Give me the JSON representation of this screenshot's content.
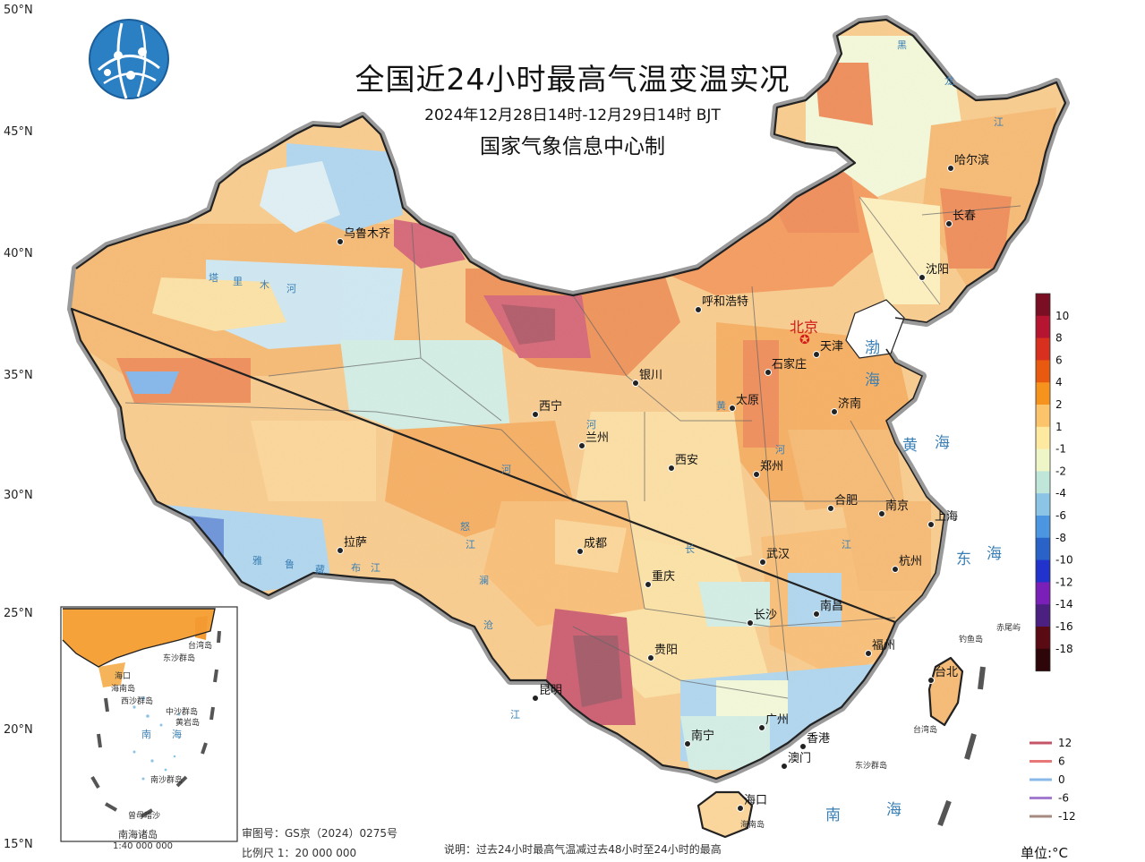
{
  "title": "全国近24小时最高气温变温实况",
  "time_range": "2024年12月28日14时-12月29日14时 BJT",
  "issuer": "国家气象信息中心制",
  "logo_icon": "globe-network-logo-icon",
  "latitude_labels": [
    "50°N",
    "45°N",
    "40°N",
    "35°N",
    "30°N",
    "25°N",
    "20°N",
    "15°N"
  ],
  "cities": [
    {
      "name": "乌鲁木齐"
    },
    {
      "name": "呼和浩特"
    },
    {
      "name": "银川"
    },
    {
      "name": "西宁"
    },
    {
      "name": "兰州"
    },
    {
      "name": "石家庄"
    },
    {
      "name": "太原"
    },
    {
      "name": "天津"
    },
    {
      "name": "济南"
    },
    {
      "name": "西安"
    },
    {
      "name": "郑州"
    },
    {
      "name": "合肥"
    },
    {
      "name": "南京"
    },
    {
      "name": "上海"
    },
    {
      "name": "成都"
    },
    {
      "name": "重庆"
    },
    {
      "name": "武汉"
    },
    {
      "name": "杭州"
    },
    {
      "name": "拉萨"
    },
    {
      "name": "长沙"
    },
    {
      "name": "南昌"
    },
    {
      "name": "贵阳"
    },
    {
      "name": "福州"
    },
    {
      "name": "台北"
    },
    {
      "name": "昆明"
    },
    {
      "name": "广州"
    },
    {
      "name": "南宁"
    },
    {
      "name": "香港"
    },
    {
      "name": "澳门"
    },
    {
      "name": "海口"
    },
    {
      "name": "哈尔滨"
    },
    {
      "name": "长春"
    },
    {
      "name": "沈阳"
    }
  ],
  "capital": "北京",
  "seas": [
    {
      "name": "渤"
    },
    {
      "name": "海"
    },
    {
      "name": "黄"
    },
    {
      "name": "海"
    },
    {
      "name": "东"
    },
    {
      "name": "海"
    },
    {
      "name": "南"
    },
    {
      "name": "海"
    }
  ],
  "islands": [
    "钓鱼岛",
    "赤尾屿",
    "台湾岛",
    "东沙群岛",
    "海南岛"
  ],
  "rivers": [
    "黑",
    "龙",
    "江",
    "长",
    "江",
    "河",
    "河",
    "黄",
    "河",
    "塔",
    "里",
    "木",
    "河",
    "怒",
    "江",
    "澜",
    "沧",
    "江",
    "雅",
    "鲁",
    "藏",
    "布",
    "江"
  ],
  "colorbar": {
    "ticks": [
      "10",
      "8",
      "6",
      "4",
      "2",
      "1",
      "-1",
      "-2",
      "-4",
      "-6",
      "-8",
      "-10",
      "-12",
      "-14",
      "-16",
      "-18"
    ],
    "colors": [
      "#7a0e22",
      "#b51530",
      "#d7301f",
      "#e85a10",
      "#f6921e",
      "#fbc46a",
      "#fdeaa0",
      "#eef6c8",
      "#bfe6d9",
      "#8cc4e6",
      "#4c95e0",
      "#2a63c8",
      "#2233cc",
      "#7a1fb8",
      "#4b2080",
      "#5a0a12",
      "#2e0508"
    ]
  },
  "contour_legend": [
    {
      "label": "12",
      "color": "#c65468"
    },
    {
      "label": "6",
      "color": "#e87878"
    },
    {
      "label": "0",
      "color": "#8ab8e8"
    },
    {
      "label": "-6",
      "color": "#a37bd0"
    },
    {
      "label": "-12",
      "color": "#a68a80"
    }
  ],
  "unit_label": "单位:°C",
  "inset": {
    "title": "南海诸岛",
    "scale": "1:40 000 000",
    "labels": [
      "台湾岛",
      "东沙群岛",
      "海口",
      "海南岛",
      "西沙群岛",
      "中沙群岛",
      "黄岩岛",
      "南",
      "海",
      "南沙群岛",
      "曾母暗沙"
    ]
  },
  "map_review_no": "审图号：GS京（2024）0275号",
  "scale_text": "比例尺 1：20 000 000",
  "note": "说明：过去24小时最高气温减过去48小时至24小时的最高"
}
